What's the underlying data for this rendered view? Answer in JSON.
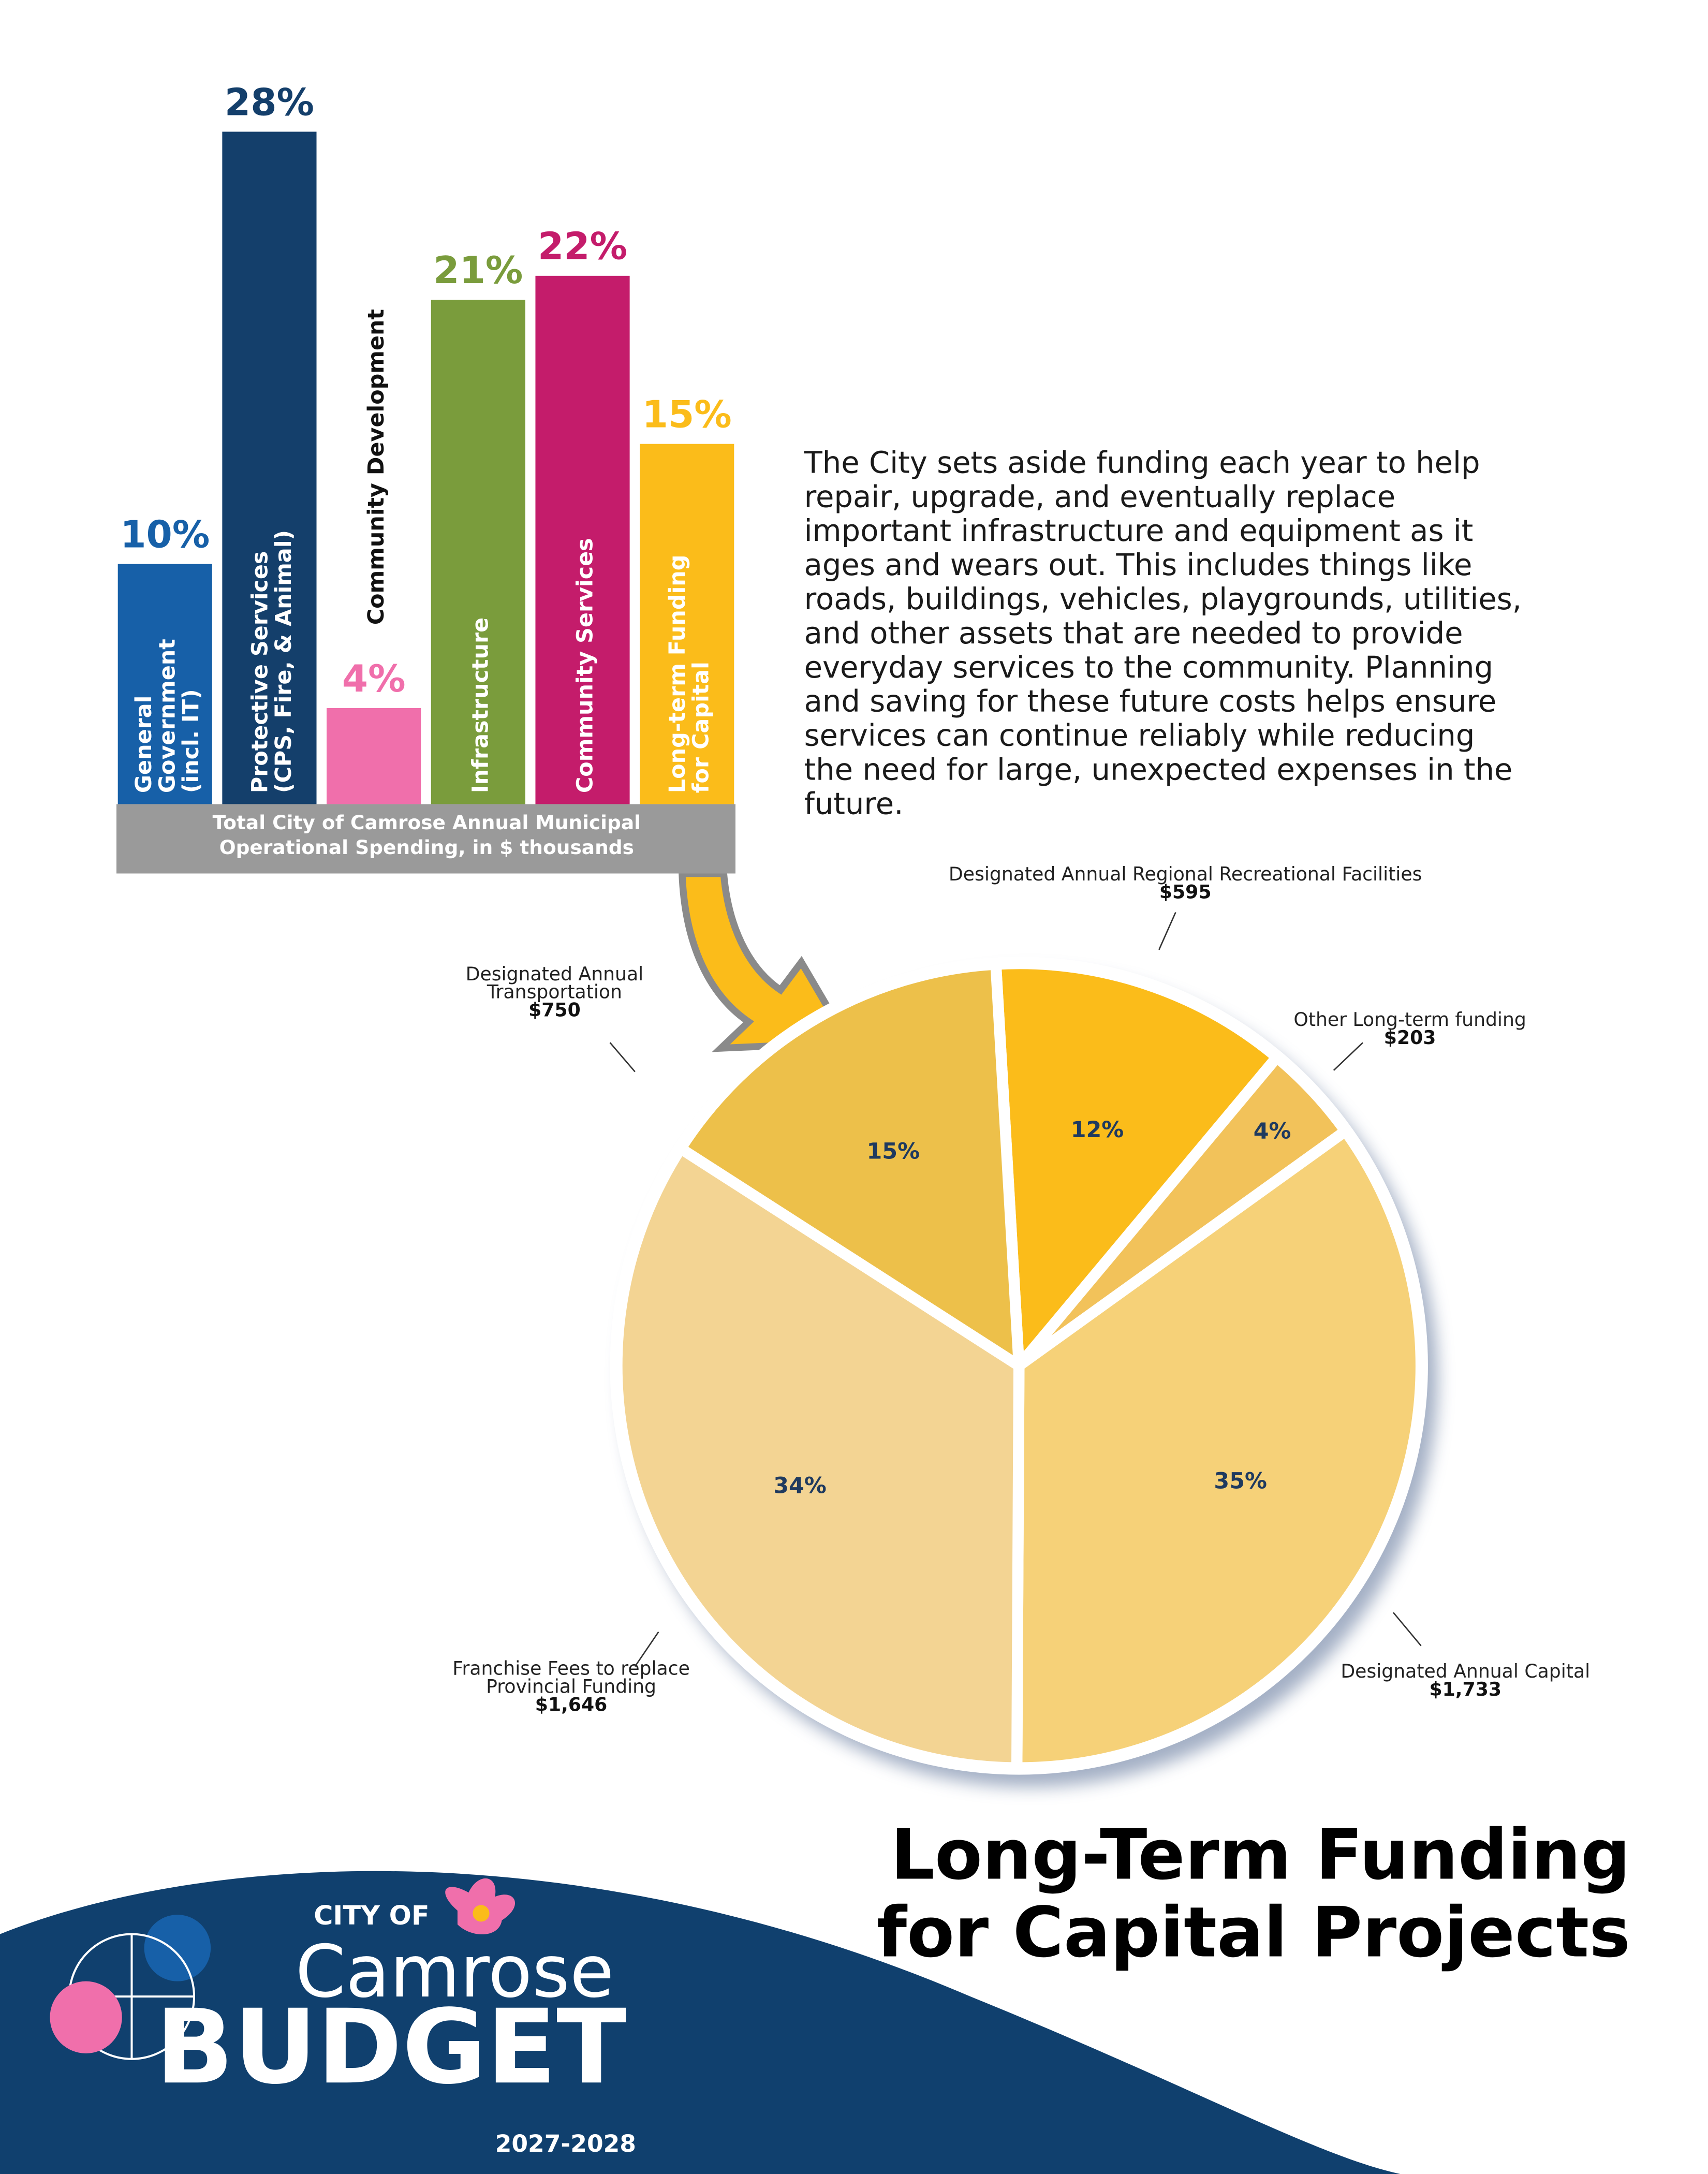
{
  "chart_data": [
    {
      "type": "bar",
      "categories": [
        "General\nGovernment\n(incl. IT)",
        "Protective Services\n(CPS, Fire, & Animal)",
        "Community Development",
        "Infrastructure",
        "Community Services",
        "Long-term Funding\nfor Capital"
      ],
      "values": [
        10,
        28,
        4,
        21,
        22,
        15
      ],
      "value_labels": [
        "10%",
        "28%",
        "4%",
        "21%",
        "22%",
        "15%"
      ],
      "colors": [
        "#1760a8",
        "#143f6b",
        "#f06fab",
        "#7a9c3c",
        "#c41c6b",
        "#fbbc1a"
      ],
      "xlabel": "Total City of Camrose Annual Municipal\nOperational Spending, in $ thousands"
    },
    {
      "type": "pie",
      "categories": [
        "Designated Annual Regional Recreational Facilities",
        "Other Long-term funding",
        "Designated Annual Capital",
        "Franchise Fees to replace\nProvincial Funding",
        "Designated Annual\nTransportation"
      ],
      "values": [
        12,
        4,
        35,
        34,
        15
      ],
      "value_labels": [
        "12%",
        "4%",
        "35%",
        "34%",
        "15%"
      ],
      "amounts": [
        595,
        203,
        1733,
        1646,
        750
      ],
      "amount_labels": [
        "$595",
        "$203",
        "$1,733",
        "$1,646",
        "$750"
      ],
      "colors": [
        "#fbbc1a",
        "#f2c25a",
        "#f6d178",
        "#f3d493",
        "#edc04a"
      ]
    }
  ],
  "description": [
    "The City sets aside funding each year to help",
    "repair, upgrade, and eventually replace",
    "important infrastructure and equipment as it",
    "ages and wears out. This includes things like",
    "roads, buildings, vehicles, playgrounds, utilities,",
    "and other assets that are needed to provide",
    "everyday services to the community. Planning",
    "and saving for these future costs helps ensure",
    "services can continue reliably while reducing",
    "the need for large, unexpected expenses in the",
    "future."
  ],
  "title": [
    "Long-Term Funding",
    "for Capital Projects"
  ],
  "logo": {
    "city_of": "CITY OF",
    "name": "Camrose",
    "budget": "BUDGET",
    "years": "2027-2028"
  }
}
